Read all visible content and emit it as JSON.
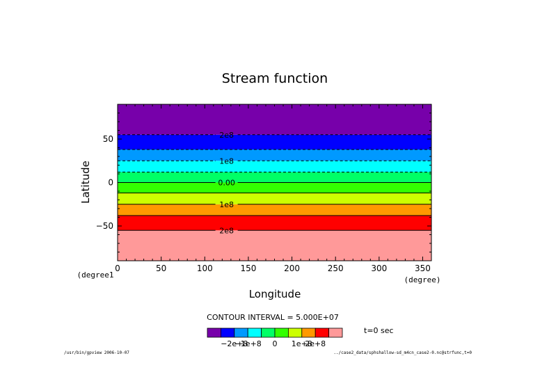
{
  "chart_data": {
    "type": "filled-contour",
    "title": "Stream function",
    "xlabel": "Longitude",
    "ylabel": "Latitude",
    "x_unit": "(degree)",
    "y_unit": "(degree1",
    "xlim": [
      0,
      360
    ],
    "ylim": [
      -90,
      90
    ],
    "x_ticks": [
      0,
      50,
      100,
      150,
      200,
      250,
      300,
      350
    ],
    "y_ticks": [
      -50,
      0,
      50
    ],
    "bands": [
      {
        "lat_from": -90,
        "lat_to": -55,
        "color": "#ff9999"
      },
      {
        "lat_from": -55,
        "lat_to": -38,
        "color": "#ff0000"
      },
      {
        "lat_from": -38,
        "lat_to": -25,
        "color": "#ff9900"
      },
      {
        "lat_from": -25,
        "lat_to": -12,
        "color": "#ccff00"
      },
      {
        "lat_from": -12,
        "lat_to": 0,
        "color": "#33ff00"
      },
      {
        "lat_from": 0,
        "lat_to": 12,
        "color": "#00ff66"
      },
      {
        "lat_from": 12,
        "lat_to": 25,
        "color": "#00ffff"
      },
      {
        "lat_from": 25,
        "lat_to": 38,
        "color": "#0099ff"
      },
      {
        "lat_from": 38,
        "lat_to": 55,
        "color": "#0000ff"
      },
      {
        "lat_from": 55,
        "lat_to": 90,
        "color": "#7700aa"
      }
    ],
    "contours": [
      {
        "lat": -55,
        "dashed": false,
        "label": "2e8"
      },
      {
        "lat": -38,
        "dashed": false,
        "label": ""
      },
      {
        "lat": -25,
        "dashed": false,
        "label": "1e8"
      },
      {
        "lat": -12,
        "dashed": false,
        "label": ""
      },
      {
        "lat": 0,
        "dashed": false,
        "label": "0.00"
      },
      {
        "lat": 12,
        "dashed": true,
        "label": ""
      },
      {
        "lat": 25,
        "dashed": true,
        "label": "1e8"
      },
      {
        "lat": 38,
        "dashed": true,
        "label": ""
      },
      {
        "lat": 55,
        "dashed": true,
        "label": "2e8"
      }
    ],
    "legend": {
      "interval_text": "CONTOUR INTERVAL = 5.000E+07",
      "colors": [
        "#7700aa",
        "#0000ff",
        "#0099ff",
        "#00ffff",
        "#00ff66",
        "#33ff00",
        "#ccff00",
        "#ff9900",
        "#ff0000",
        "#ff9999"
      ],
      "labels": [
        "−2e+8",
        "−1e+8",
        "0",
        "1e+8",
        "2e+8"
      ],
      "time": "t=0 sec"
    }
  },
  "footer": {
    "left": "/usr/bin/gpview  2006-10-07",
    "right": "../case2_data/sphshallow-sd_m4cn_case2-0.nc@strfunc,t=0"
  }
}
